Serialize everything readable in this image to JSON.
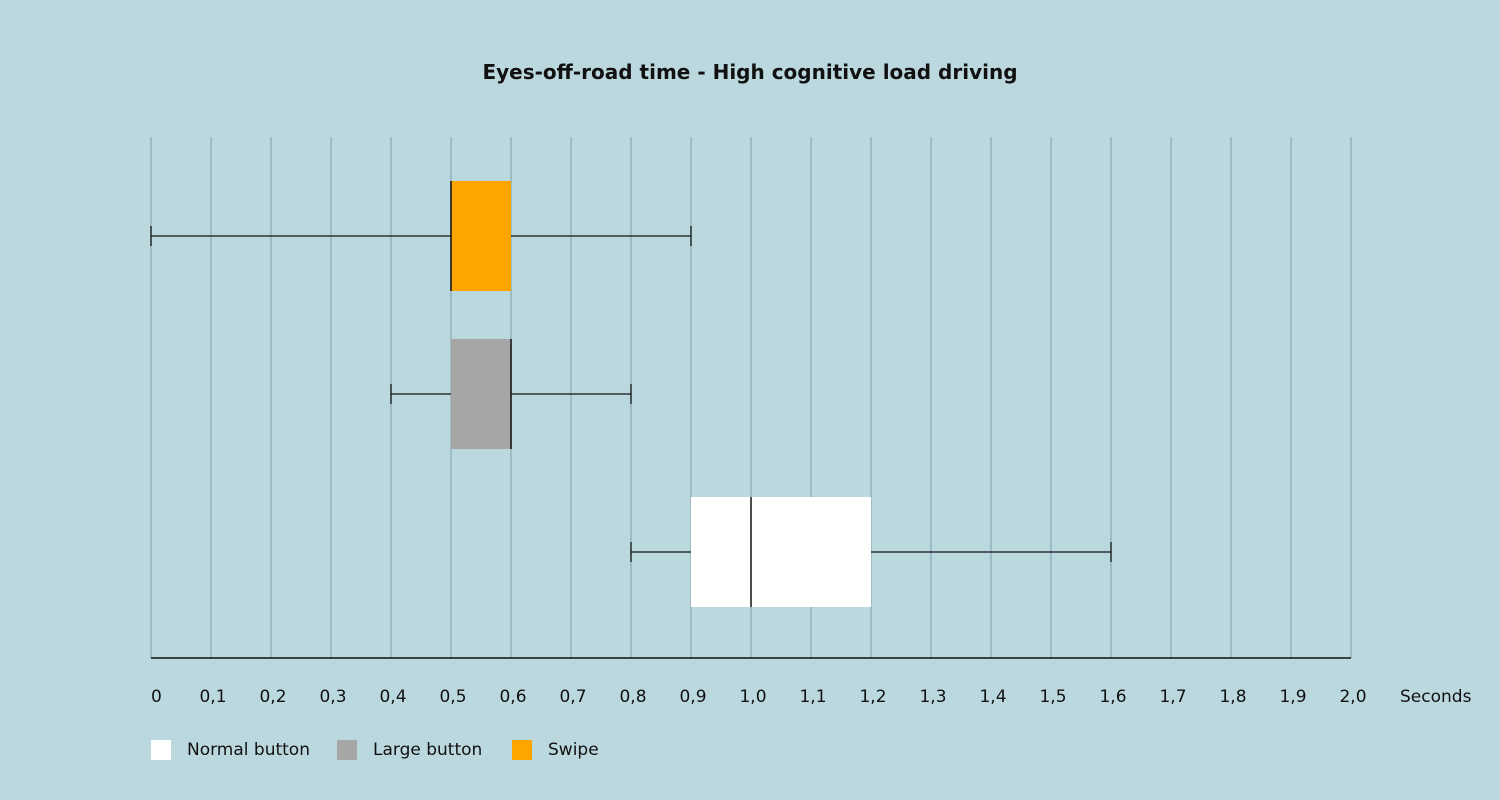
{
  "chart_data": {
    "type": "boxplot",
    "title": "Eyes-off-road time - High cognitive load driving",
    "xlabel": "Seconds",
    "xlim": [
      0,
      2.0
    ],
    "x_ticks": [
      "0",
      "0,1",
      "0,2",
      "0,3",
      "0,4",
      "0,5",
      "0,6",
      "0,7",
      "0,8",
      "0,9",
      "1,0",
      "1,1",
      "1,2",
      "1,3",
      "1,4",
      "1,5",
      "1,6",
      "1,7",
      "1,8",
      "1,9",
      "2,0"
    ],
    "grid": "vertical",
    "legend_placement": "bottom-left",
    "series": [
      {
        "name": "Swipe",
        "color": "#ffa500",
        "whisker_low": 0,
        "q1": 0.5,
        "median": 0.5,
        "q3": 0.6,
        "whisker_high": 0.9
      },
      {
        "name": "Large button",
        "color": "#a6a6a6",
        "whisker_low": 0.4,
        "q1": 0.5,
        "median": 0.6,
        "q3": 0.6,
        "whisker_high": 0.8
      },
      {
        "name": "Normal button",
        "color": "#ffffff",
        "whisker_low": 0.8,
        "q1": 0.9,
        "median": 1.0,
        "q3": 1.2,
        "whisker_high": 1.6
      }
    ],
    "legend": [
      "Normal button",
      "Large button",
      "Swipe"
    ]
  }
}
